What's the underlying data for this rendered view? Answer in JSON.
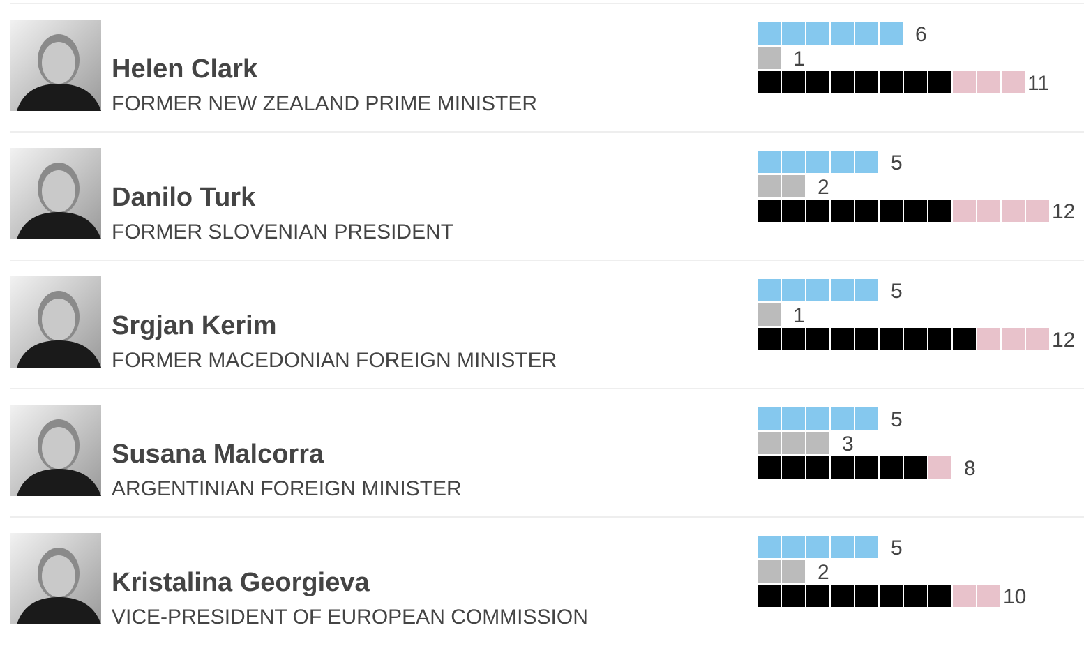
{
  "colors": {
    "encourage": "#85c8ee",
    "no_opinion": "#bbbbbb",
    "discourage": "#000000",
    "discourage_extra": "#e8c2cb",
    "divider": "#eeeeee",
    "text": "#444444"
  },
  "candidates": [
    {
      "name": "Helen Clark",
      "title": "FORMER NEW ZEALAND PRIME MINISTER",
      "photo_icon": "portrait-photo"
    },
    {
      "name": "Danilo Turk",
      "title": "FORMER SLOVENIAN PRESIDENT",
      "photo_icon": "portrait-photo"
    },
    {
      "name": "Srgjan Kerim",
      "title": "FORMER MACEDONIAN FOREIGN MINISTER",
      "photo_icon": "portrait-photo"
    },
    {
      "name": "Susana Malcorra",
      "title": "ARGENTINIAN FOREIGN MINISTER",
      "photo_icon": "portrait-photo"
    },
    {
      "name": "Kristalina Georgieva",
      "title": "VICE-PRESIDENT OF EUROPEAN COMMISSION",
      "photo_icon": "portrait-photo"
    }
  ],
  "chart_data": {
    "type": "bar",
    "categories": [
      "Helen Clark",
      "Danilo Turk",
      "Srgjan Kerim",
      "Susana Malcorra",
      "Kristalina Georgieva"
    ],
    "rows": [
      {
        "blue": 6,
        "grey": 1,
        "black": 8,
        "pink": 3,
        "black_pink_label": "11",
        "blue_label": "6",
        "grey_label": "1"
      },
      {
        "blue": 5,
        "grey": 2,
        "black": 8,
        "pink": 4,
        "black_pink_label": "12",
        "blue_label": "5",
        "grey_label": "2"
      },
      {
        "blue": 5,
        "grey": 1,
        "black": 9,
        "pink": 3,
        "black_pink_label": "12",
        "blue_label": "5",
        "grey_label": "1"
      },
      {
        "blue": 5,
        "grey": 3,
        "black": 7,
        "pink": 1,
        "black_pink_label": "8",
        "blue_label": "5",
        "grey_label": "3"
      },
      {
        "blue": 5,
        "grey": 2,
        "black": 8,
        "pink": 2,
        "black_pink_label": "10",
        "blue_label": "5",
        "grey_label": "2"
      }
    ]
  }
}
